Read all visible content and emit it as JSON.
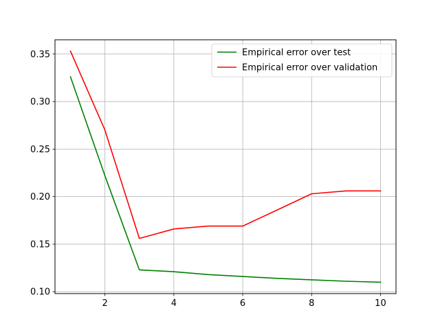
{
  "chart_data": {
    "type": "line",
    "title": "",
    "xlabel": "",
    "ylabel": "",
    "xlim": [
      0.55,
      10.45
    ],
    "ylim": [
      0.098,
      0.365
    ],
    "grid": true,
    "legend_position": "top-right",
    "x_ticks": [
      2,
      4,
      6,
      8,
      10
    ],
    "y_ticks": [
      0.1,
      0.15,
      0.2,
      0.25,
      0.3,
      0.35
    ],
    "x_tick_labels": [
      "2",
      "4",
      "6",
      "8",
      "10"
    ],
    "y_tick_labels": [
      "0.10",
      "0.15",
      "0.20",
      "0.25",
      "0.30",
      "0.35"
    ],
    "x": [
      1,
      2,
      3,
      4,
      5,
      6,
      7,
      8,
      9,
      10
    ],
    "series": [
      {
        "name": "Empirical error over test",
        "color": "#008000",
        "values": [
          0.326,
          0.222,
          0.123,
          0.121,
          0.118,
          0.116,
          0.114,
          0.1125,
          0.111,
          0.11
        ]
      },
      {
        "name": "Empirical error over validation",
        "color": "#ff0000",
        "values": [
          0.353,
          0.27,
          0.156,
          0.166,
          0.169,
          0.169,
          0.186,
          0.203,
          0.206,
          0.206
        ]
      }
    ]
  }
}
